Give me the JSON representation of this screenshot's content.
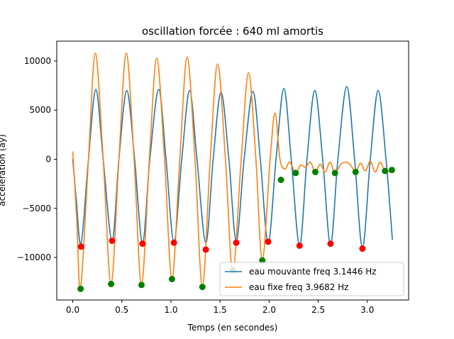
{
  "chart_data": {
    "type": "line",
    "title": "oscillation forcée : 640 ml amortis",
    "xlabel": "Temps (en secondes)",
    "ylabel": "accélération  (ay)",
    "xlim": [
      -0.163,
      3.42
    ],
    "ylim": [
      -14330,
      12020
    ],
    "xticks": [
      0.0,
      0.5,
      1.0,
      1.5,
      2.0,
      2.5,
      3.0
    ],
    "xtick_labels": [
      "0.0",
      "0.5",
      "1.0",
      "1.5",
      "2.0",
      "2.5",
      "3.0"
    ],
    "yticks": [
      -10000,
      -5000,
      0,
      5000,
      10000
    ],
    "ytick_labels": [
      "−10000",
      "−5000",
      "0",
      "5000",
      "10000"
    ],
    "grid": false,
    "legend_position": "lower right",
    "series": [
      {
        "name": "eau mouvante freq 3.1446 Hz",
        "color": "#1f77b4",
        "x": [
          0.0,
          0.035,
          0.085,
          0.16,
          0.235,
          0.31,
          0.4,
          0.47,
          0.55,
          0.63,
          0.71,
          0.785,
          0.875,
          0.95,
          1.03,
          1.11,
          1.19,
          1.265,
          1.355,
          1.43,
          1.51,
          1.59,
          1.665,
          1.745,
          1.835,
          1.91,
          1.99,
          2.07,
          2.15,
          2.225,
          2.31,
          2.385,
          2.465,
          2.545,
          2.625,
          2.7,
          2.79,
          2.87,
          2.95,
          3.03,
          3.11,
          3.19,
          3.255
        ],
        "y": [
          0,
          -4000,
          -8600,
          0,
          7100,
          0,
          -8300,
          0,
          7000,
          0,
          -8500,
          0,
          7100,
          0,
          -8400,
          0,
          7000,
          0,
          -8500,
          0,
          6800,
          0,
          -8300,
          0,
          6900,
          0,
          -8500,
          0,
          7200,
          0,
          -8800,
          0,
          7000,
          0,
          -8700,
          0,
          7400,
          0,
          -9000,
          0,
          7000,
          0,
          -8200
        ]
      },
      {
        "name": "eau fixe freq 3.9682 Hz",
        "color": "#ff7f0e",
        "x": [
          0.0,
          0.04,
          0.08,
          0.16,
          0.23,
          0.31,
          0.39,
          0.47,
          0.545,
          0.625,
          0.7,
          0.78,
          0.855,
          0.935,
          1.01,
          1.09,
          1.165,
          1.245,
          1.32,
          1.4,
          1.475,
          1.555,
          1.63,
          1.715,
          1.79,
          1.865,
          1.93,
          2.01,
          2.06,
          2.11,
          2.16,
          2.21,
          2.27,
          2.32,
          2.37,
          2.42,
          2.47,
          2.52,
          2.57,
          2.62,
          2.67,
          2.73,
          2.78,
          2.83,
          2.88,
          2.93,
          2.98,
          3.03,
          3.08,
          3.13,
          3.18,
          3.25
        ],
        "y": [
          800,
          -6000,
          -13200,
          0,
          10800,
          0,
          -12700,
          0,
          10800,
          0,
          -12800,
          0,
          10300,
          0,
          -12200,
          0,
          10400,
          0,
          -13000,
          0,
          9700,
          0,
          -11500,
          0,
          8800,
          0,
          -10300,
          0,
          4700,
          0,
          -1000,
          -300,
          -1400,
          -600,
          -800,
          -300,
          -1300,
          -500,
          -1300,
          -300,
          -1400,
          -500,
          -300,
          -600,
          -1300,
          -400,
          -1200,
          -200,
          -1300,
          -300,
          -1200,
          -1200
        ]
      }
    ],
    "markers": [
      {
        "name": "maxima",
        "color": "#ff0000",
        "x": [
          0.085,
          0.4,
          0.71,
          1.03,
          1.355,
          1.665,
          1.99,
          2.31,
          2.625,
          2.95
        ],
        "y": [
          -8900,
          -8300,
          -8600,
          -8500,
          -9200,
          -8500,
          -8400,
          -8800,
          -8600,
          -9100
        ]
      },
      {
        "name": "minima",
        "color": "#008000",
        "x": [
          0.08,
          0.39,
          0.7,
          1.01,
          1.32,
          1.63,
          1.93,
          2.12,
          2.27,
          2.47,
          2.67,
          2.88,
          3.18,
          3.25
        ],
        "y": [
          -13200,
          -12700,
          -12800,
          -12200,
          -13000,
          -11300,
          -10300,
          -2100,
          -1400,
          -1300,
          -1400,
          -1300,
          -1200,
          -1100
        ]
      }
    ]
  }
}
